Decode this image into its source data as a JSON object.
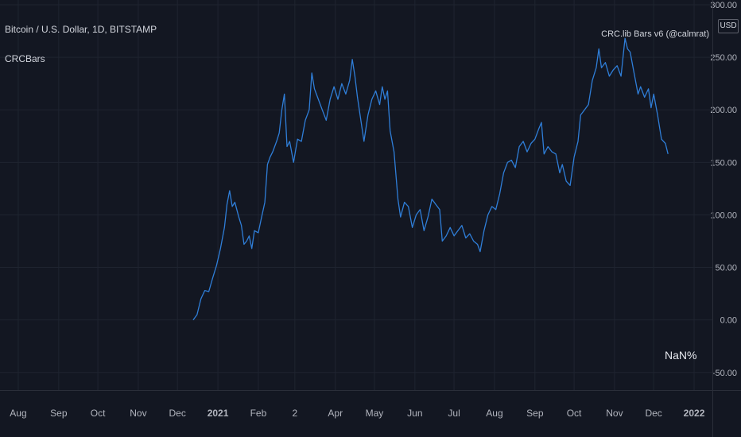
{
  "header": {
    "symbol_title": "Bitcoin / U.S. Dollar, 1D, BITSTAMP",
    "indicator_name": "CRCBars",
    "indicator_label": "CRC.lib Bars v6 (@calmrat)",
    "currency": "USD",
    "nan_label": "NaN%"
  },
  "colors": {
    "background": "#131722",
    "grid": "#1f2430",
    "line": "#2f7ed8",
    "text": "#d1d4dc",
    "axis_text": "#b2b5be"
  },
  "chart_data": {
    "type": "line",
    "title": "",
    "xlabel": "",
    "ylabel": "",
    "ylim": [
      -60,
      300
    ],
    "y_ticks": [
      300,
      250,
      200,
      150,
      100,
      50,
      0,
      -50
    ],
    "y_tick_labels": [
      "300.00",
      "250.00",
      "200.00",
      "150.00",
      "100.00",
      "50.00",
      "0.00",
      "-50.00"
    ],
    "x_ticks": [
      {
        "label": "Aug",
        "date": "2020-08-01",
        "bold": false
      },
      {
        "label": "Sep",
        "date": "2020-09-01",
        "bold": false
      },
      {
        "label": "Oct",
        "date": "2020-10-01",
        "bold": false
      },
      {
        "label": "Nov",
        "date": "2020-11-01",
        "bold": false
      },
      {
        "label": "Dec",
        "date": "2020-12-01",
        "bold": false
      },
      {
        "label": "2021",
        "date": "2021-01-01",
        "bold": true
      },
      {
        "label": "Feb",
        "date": "2021-02-01",
        "bold": false
      },
      {
        "label": "2",
        "date": "2021-03-01",
        "bold": false
      },
      {
        "label": "Apr",
        "date": "2021-04-01",
        "bold": false
      },
      {
        "label": "May",
        "date": "2021-05-01",
        "bold": false
      },
      {
        "label": "Jun",
        "date": "2021-06-01",
        "bold": false
      },
      {
        "label": "Jul",
        "date": "2021-07-01",
        "bold": false
      },
      {
        "label": "Aug",
        "date": "2021-08-01",
        "bold": false
      },
      {
        "label": "Sep",
        "date": "2021-09-01",
        "bold": false
      },
      {
        "label": "Oct",
        "date": "2021-10-01",
        "bold": false
      },
      {
        "label": "Nov",
        "date": "2021-11-01",
        "bold": false
      },
      {
        "label": "Dec",
        "date": "2021-12-01",
        "bold": false
      },
      {
        "label": "2022",
        "date": "2022-01-01",
        "bold": true
      }
    ],
    "xlim": [
      "2020-07-18",
      "2022-01-15"
    ],
    "series": [
      {
        "points": [
          [
            "2020-12-13",
            0
          ],
          [
            "2020-12-16",
            5
          ],
          [
            "2020-12-19",
            20
          ],
          [
            "2020-12-22",
            28
          ],
          [
            "2020-12-25",
            27
          ],
          [
            "2020-12-28",
            40
          ],
          [
            "2020-12-31",
            52
          ],
          [
            "2021-01-03",
            68
          ],
          [
            "2021-01-06",
            88
          ],
          [
            "2021-01-08",
            110
          ],
          [
            "2021-01-10",
            123
          ],
          [
            "2021-01-12",
            108
          ],
          [
            "2021-01-14",
            112
          ],
          [
            "2021-01-17",
            98
          ],
          [
            "2021-01-19",
            90
          ],
          [
            "2021-01-21",
            72
          ],
          [
            "2021-01-23",
            75
          ],
          [
            "2021-01-25",
            80
          ],
          [
            "2021-01-27",
            68
          ],
          [
            "2021-01-29",
            85
          ],
          [
            "2021-02-01",
            83
          ],
          [
            "2021-02-03",
            95
          ],
          [
            "2021-02-06",
            112
          ],
          [
            "2021-02-08",
            148
          ],
          [
            "2021-02-10",
            155
          ],
          [
            "2021-02-12",
            160
          ],
          [
            "2021-02-15",
            170
          ],
          [
            "2021-02-17",
            178
          ],
          [
            "2021-02-19",
            200
          ],
          [
            "2021-02-21",
            215
          ],
          [
            "2021-02-23",
            165
          ],
          [
            "2021-02-25",
            170
          ],
          [
            "2021-02-28",
            150
          ],
          [
            "2021-03-03",
            172
          ],
          [
            "2021-03-06",
            170
          ],
          [
            "2021-03-09",
            190
          ],
          [
            "2021-03-12",
            200
          ],
          [
            "2021-03-14",
            235
          ],
          [
            "2021-03-16",
            220
          ],
          [
            "2021-03-19",
            210
          ],
          [
            "2021-03-22",
            200
          ],
          [
            "2021-03-25",
            190
          ],
          [
            "2021-03-28",
            210
          ],
          [
            "2021-03-31",
            222
          ],
          [
            "2021-04-03",
            210
          ],
          [
            "2021-04-06",
            225
          ],
          [
            "2021-04-09",
            215
          ],
          [
            "2021-04-12",
            228
          ],
          [
            "2021-04-14",
            248
          ],
          [
            "2021-04-16",
            232
          ],
          [
            "2021-04-18",
            212
          ],
          [
            "2021-04-20",
            195
          ],
          [
            "2021-04-23",
            170
          ],
          [
            "2021-04-26",
            195
          ],
          [
            "2021-04-29",
            210
          ],
          [
            "2021-05-02",
            218
          ],
          [
            "2021-05-05",
            205
          ],
          [
            "2021-05-07",
            222
          ],
          [
            "2021-05-09",
            210
          ],
          [
            "2021-05-11",
            218
          ],
          [
            "2021-05-13",
            180
          ],
          [
            "2021-05-16",
            160
          ],
          [
            "2021-05-19",
            115
          ],
          [
            "2021-05-21",
            98
          ],
          [
            "2021-05-24",
            112
          ],
          [
            "2021-05-27",
            108
          ],
          [
            "2021-05-30",
            88
          ],
          [
            "2021-06-02",
            100
          ],
          [
            "2021-06-05",
            105
          ],
          [
            "2021-06-08",
            85
          ],
          [
            "2021-06-11",
            98
          ],
          [
            "2021-06-14",
            115
          ],
          [
            "2021-06-17",
            110
          ],
          [
            "2021-06-20",
            105
          ],
          [
            "2021-06-22",
            75
          ],
          [
            "2021-06-25",
            80
          ],
          [
            "2021-06-28",
            88
          ],
          [
            "2021-07-01",
            80
          ],
          [
            "2021-07-04",
            85
          ],
          [
            "2021-07-07",
            90
          ],
          [
            "2021-07-10",
            78
          ],
          [
            "2021-07-13",
            82
          ],
          [
            "2021-07-16",
            75
          ],
          [
            "2021-07-19",
            72
          ],
          [
            "2021-07-21",
            65
          ],
          [
            "2021-07-24",
            85
          ],
          [
            "2021-07-27",
            100
          ],
          [
            "2021-07-30",
            108
          ],
          [
            "2021-08-02",
            105
          ],
          [
            "2021-08-05",
            120
          ],
          [
            "2021-08-08",
            140
          ],
          [
            "2021-08-11",
            150
          ],
          [
            "2021-08-14",
            152
          ],
          [
            "2021-08-17",
            145
          ],
          [
            "2021-08-20",
            165
          ],
          [
            "2021-08-23",
            170
          ],
          [
            "2021-08-26",
            160
          ],
          [
            "2021-08-29",
            168
          ],
          [
            "2021-09-01",
            172
          ],
          [
            "2021-09-04",
            182
          ],
          [
            "2021-09-06",
            188
          ],
          [
            "2021-09-08",
            158
          ],
          [
            "2021-09-11",
            165
          ],
          [
            "2021-09-14",
            160
          ],
          [
            "2021-09-17",
            158
          ],
          [
            "2021-09-20",
            140
          ],
          [
            "2021-09-22",
            148
          ],
          [
            "2021-09-25",
            132
          ],
          [
            "2021-09-28",
            128
          ],
          [
            "2021-10-01",
            155
          ],
          [
            "2021-10-04",
            170
          ],
          [
            "2021-10-06",
            195
          ],
          [
            "2021-10-09",
            200
          ],
          [
            "2021-10-12",
            205
          ],
          [
            "2021-10-15",
            228
          ],
          [
            "2021-10-18",
            240
          ],
          [
            "2021-10-20",
            258
          ],
          [
            "2021-10-22",
            240
          ],
          [
            "2021-10-25",
            245
          ],
          [
            "2021-10-28",
            232
          ],
          [
            "2021-10-31",
            238
          ],
          [
            "2021-11-03",
            242
          ],
          [
            "2021-11-06",
            232
          ],
          [
            "2021-11-09",
            268
          ],
          [
            "2021-11-11",
            258
          ],
          [
            "2021-11-13",
            255
          ],
          [
            "2021-11-16",
            235
          ],
          [
            "2021-11-19",
            215
          ],
          [
            "2021-11-21",
            222
          ],
          [
            "2021-11-24",
            212
          ],
          [
            "2021-11-27",
            220
          ],
          [
            "2021-11-29",
            202
          ],
          [
            "2021-12-01",
            215
          ],
          [
            "2021-12-04",
            195
          ],
          [
            "2021-12-07",
            172
          ],
          [
            "2021-12-10",
            168
          ],
          [
            "2021-12-12",
            158
          ]
        ]
      }
    ]
  }
}
